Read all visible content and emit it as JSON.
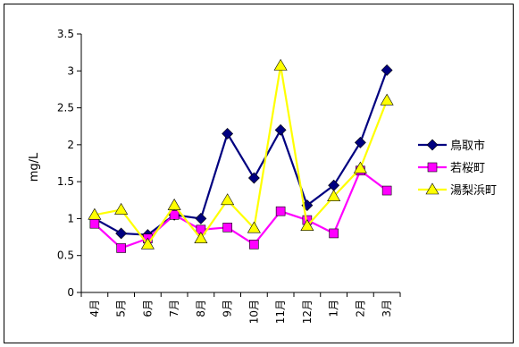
{
  "chart_data": {
    "type": "line",
    "ylabel": "mg/L",
    "xlabel": "",
    "title": "",
    "ylim": [
      0,
      3.5
    ],
    "yticks": [
      0,
      0.5,
      1,
      1.5,
      2,
      2.5,
      3,
      3.5
    ],
    "ytick_labels": [
      "0",
      "0.5",
      "1",
      "1.5",
      "2",
      "2.5",
      "3",
      "3.5"
    ],
    "categories": [
      "4月",
      "5月",
      "6月",
      "7月",
      "8月",
      "9月",
      "10月",
      "11月",
      "12月",
      "1月",
      "2月",
      "3月"
    ],
    "grid": false,
    "legend_position": "right",
    "series": [
      {
        "name": "鳥取市",
        "color": "#000080",
        "marker": "diamond",
        "values": [
          1.0,
          0.8,
          0.78,
          1.05,
          1.0,
          2.15,
          1.55,
          2.2,
          1.18,
          1.45,
          2.03,
          3.01
        ]
      },
      {
        "name": "若桜町",
        "color": "#ff00ff",
        "marker": "square",
        "values": [
          0.93,
          0.6,
          0.73,
          1.05,
          0.85,
          0.88,
          0.65,
          1.1,
          0.98,
          0.8,
          1.65,
          1.38
        ]
      },
      {
        "name": "湯梨浜町",
        "color": "#ffff00",
        "marker": "triangle",
        "values": [
          1.05,
          1.12,
          0.65,
          1.18,
          0.73,
          1.25,
          0.87,
          3.07,
          0.9,
          1.3,
          1.68,
          2.6
        ]
      }
    ]
  }
}
